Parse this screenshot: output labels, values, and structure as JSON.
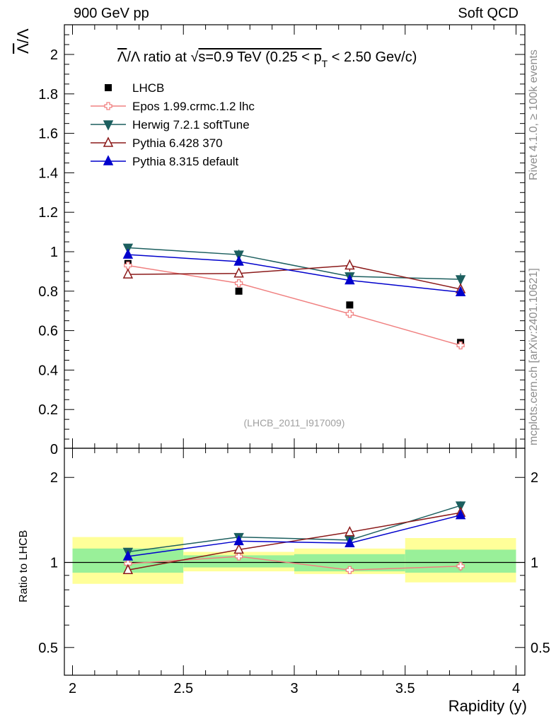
{
  "header": {
    "left": "900 GeV pp",
    "right": "Soft QCD"
  },
  "side_labels": {
    "rivet": "Rivet 4.1.0, ≥ 100k events",
    "mcplots": "mcplots.cern.ch [arXiv:2401.10621]"
  },
  "chart_data": {
    "type": "line",
    "title": "Λ̅/Λ ratio at √s=0.9 TeV (0.25 < pT < 2.50 Gev/c)",
    "title_parts": {
      "lam": "Λ",
      "mid": "/Λ ratio at ",
      "sqrt": "√",
      "s": "s=0.9 TeV (0.25 < p",
      "sub": "T",
      "tail": " < 2.50 Gev/c)"
    },
    "ylabel_top": "Λ̅/Λ",
    "ylabel_top_parts": {
      "lam": "Λ",
      "rest": "/Λ"
    },
    "ylabel_bottom": "Ratio to LHCB",
    "xlabel": "Rapidity (y)",
    "analysis_tag": "(LHCB_2011_I917009)",
    "xlim": [
      2,
      4
    ],
    "ylim_top": [
      0,
      2.15
    ],
    "ylim_ratio": [
      0.4,
      2.4
    ],
    "x_ticks": [
      "2",
      "2.5",
      "3",
      "3.5",
      "4"
    ],
    "y_ticks_top": [
      "0",
      "0.2",
      "0.4",
      "0.6",
      "0.8",
      "1",
      "1.2",
      "1.4",
      "1.6",
      "1.8",
      "2"
    ],
    "y_ticks_ratio": [
      "0.5",
      "1",
      "2"
    ],
    "bins": [
      [
        2.0,
        2.5
      ],
      [
        2.5,
        3.0
      ],
      [
        3.0,
        3.5
      ],
      [
        3.5,
        4.0
      ]
    ],
    "x": [
      2.25,
      2.75,
      3.25,
      3.75
    ],
    "data": {
      "name": "LHCB",
      "values": [
        0.94,
        0.8,
        0.73,
        0.54
      ],
      "band_inner": [
        [
          0.92,
          1.12
        ],
        [
          0.96,
          1.06
        ],
        [
          0.93,
          1.07
        ],
        [
          0.92,
          1.11
        ]
      ],
      "band_outer": [
        [
          0.84,
          1.23
        ],
        [
          0.93,
          1.09
        ],
        [
          0.91,
          1.12
        ],
        [
          0.85,
          1.22
        ]
      ]
    },
    "series": [
      {
        "name": "Epos 1.99.crmc.1.2 lhc",
        "color": "#f08080",
        "marker": "cross-open",
        "values": [
          0.93,
          0.84,
          0.685,
          0.525
        ],
        "errors": [
          0.012,
          0.015,
          0.02,
          0.02
        ],
        "ratio": [
          0.99,
          1.05,
          0.94,
          0.97
        ]
      },
      {
        "name": "Herwig 7.2.1 softTune",
        "color": "#1c5f5f",
        "marker": "triangle-down",
        "values": [
          1.02,
          0.985,
          0.875,
          0.86
        ],
        "errors": [
          0.015,
          0.025,
          0.02,
          0.03
        ],
        "ratio": [
          1.09,
          1.23,
          1.2,
          1.59
        ]
      },
      {
        "name": "Pythia 6.428 370",
        "color": "#8b1a1a",
        "marker": "triangle-up-open",
        "values": [
          0.885,
          0.89,
          0.93,
          0.81
        ],
        "errors": [
          0.015,
          0.02,
          0.03,
          0.025
        ],
        "ratio": [
          0.94,
          1.11,
          1.28,
          1.5
        ]
      },
      {
        "name": "Pythia 8.315 default",
        "color": "#0000cc",
        "marker": "triangle-up",
        "values": [
          0.985,
          0.95,
          0.855,
          0.795
        ],
        "errors": [
          0.012,
          0.02,
          0.02,
          0.02
        ],
        "ratio": [
          1.05,
          1.19,
          1.17,
          1.47
        ]
      }
    ],
    "legend_position": "top-left"
  }
}
